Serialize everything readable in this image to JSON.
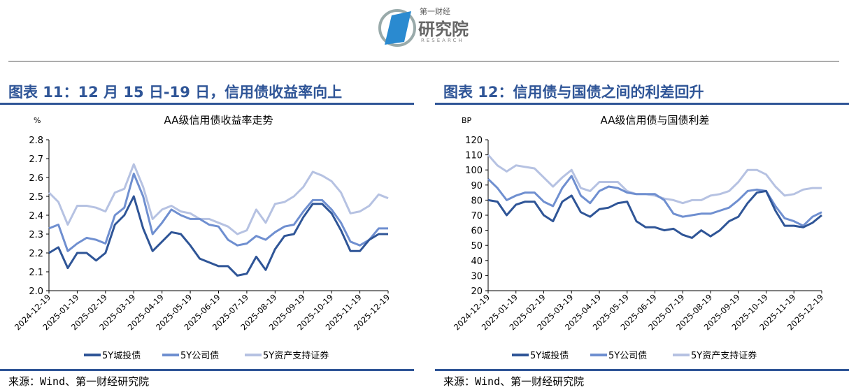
{
  "header": {
    "logo_text": "第一财经研究院",
    "logo_sub": "RESEARCH"
  },
  "colors": {
    "dark": "#2f5597",
    "mid": "#6f8fd0",
    "light": "#b6c2e2",
    "title": "#2f5597"
  },
  "left": {
    "title": "图表 11：12 月 15 日-19 日，信用债收益率向上",
    "source": "来源：Wind、第一财经研究院"
  },
  "right": {
    "title": "图表 12：信用债与国债之间的利差回升",
    "source": "来源：Wind、第一财经研究院"
  },
  "chart_data": [
    {
      "type": "line",
      "title": "AA级信用债收益率走势",
      "unit": "%",
      "ylim": [
        2.0,
        2.8
      ],
      "yticks": [
        "2.0",
        "2.1",
        "2.2",
        "2.3",
        "2.4",
        "2.5",
        "2.6",
        "2.7",
        "2.8"
      ],
      "xticks": [
        "2024-12-19",
        "2025-01-19",
        "2025-02-19",
        "2025-03-19",
        "2025-04-19",
        "2025-05-19",
        "2025-06-19",
        "2025-07-19",
        "2025-08-19",
        "2025-09-19",
        "2025-10-19",
        "2025-11-19",
        "2025-12-19"
      ],
      "legend_position": "bottom",
      "series": [
        {
          "name": "5Y城投债",
          "color": "#2f5597",
          "values": [
            2.2,
            2.23,
            2.12,
            2.2,
            2.2,
            2.16,
            2.2,
            2.35,
            2.4,
            2.5,
            2.33,
            2.21,
            2.26,
            2.31,
            2.3,
            2.24,
            2.17,
            2.15,
            2.13,
            2.13,
            2.08,
            2.09,
            2.18,
            2.11,
            2.22,
            2.29,
            2.3,
            2.39,
            2.46,
            2.46,
            2.41,
            2.32,
            2.21,
            2.21,
            2.27,
            2.3,
            2.3
          ]
        },
        {
          "name": "5Y公司债",
          "color": "#6f8fd0",
          "values": [
            2.33,
            2.35,
            2.21,
            2.25,
            2.28,
            2.27,
            2.25,
            2.4,
            2.44,
            2.62,
            2.5,
            2.3,
            2.36,
            2.43,
            2.4,
            2.38,
            2.38,
            2.35,
            2.34,
            2.27,
            2.24,
            2.25,
            2.29,
            2.27,
            2.31,
            2.34,
            2.35,
            2.42,
            2.48,
            2.48,
            2.43,
            2.36,
            2.26,
            2.24,
            2.27,
            2.33,
            2.33
          ]
        },
        {
          "name": "5Y资产支持证券",
          "color": "#b6c2e2",
          "values": [
            2.52,
            2.47,
            2.35,
            2.45,
            2.45,
            2.44,
            2.42,
            2.52,
            2.54,
            2.67,
            2.55,
            2.38,
            2.43,
            2.45,
            2.42,
            2.41,
            2.38,
            2.38,
            2.36,
            2.34,
            2.3,
            2.32,
            2.43,
            2.36,
            2.46,
            2.47,
            2.5,
            2.55,
            2.63,
            2.61,
            2.58,
            2.52,
            2.41,
            2.42,
            2.45,
            2.51,
            2.49
          ]
        }
      ]
    },
    {
      "type": "line",
      "title": "AA级信用债与国债利差",
      "unit": "BP",
      "ylim": [
        20,
        120
      ],
      "yticks": [
        "20",
        "30",
        "40",
        "50",
        "60",
        "70",
        "80",
        "90",
        "100",
        "110",
        "120"
      ],
      "xticks": [
        "2024-12-19",
        "2025-01-19",
        "2025-02-19",
        "2025-03-19",
        "2025-04-19",
        "2025-05-19",
        "2025-06-19",
        "2025-07-19",
        "2025-08-19",
        "2025-09-19",
        "2025-10-19",
        "2025-11-19",
        "2025-12-19"
      ],
      "legend_position": "bottom",
      "series": [
        {
          "name": "5Y城投债",
          "color": "#2f5597",
          "values": [
            80,
            79,
            70,
            77,
            79,
            79,
            70,
            66,
            79,
            83,
            72,
            69,
            74,
            75,
            78,
            79,
            66,
            62,
            62,
            60,
            61,
            57,
            55,
            60,
            56,
            60,
            66,
            69,
            78,
            85,
            86,
            73,
            63,
            63,
            62,
            65,
            70
          ]
        },
        {
          "name": "5Y公司债",
          "color": "#6f8fd0",
          "values": [
            94,
            88,
            80,
            83,
            85,
            85,
            79,
            76,
            88,
            96,
            83,
            78,
            86,
            89,
            88,
            85,
            84,
            84,
            84,
            80,
            71,
            69,
            70,
            71,
            71,
            73,
            75,
            80,
            86,
            87,
            86,
            76,
            68,
            66,
            63,
            69,
            72
          ]
        },
        {
          "name": "5Y资产支持证券",
          "color": "#b6c2e2",
          "values": [
            110,
            103,
            99,
            103,
            102,
            101,
            95,
            89,
            95,
            100,
            88,
            86,
            92,
            92,
            92,
            86,
            84,
            84,
            83,
            81,
            80,
            78,
            80,
            80,
            83,
            84,
            86,
            92,
            100,
            100,
            97,
            89,
            83,
            84,
            87,
            88,
            88
          ]
        }
      ]
    }
  ]
}
